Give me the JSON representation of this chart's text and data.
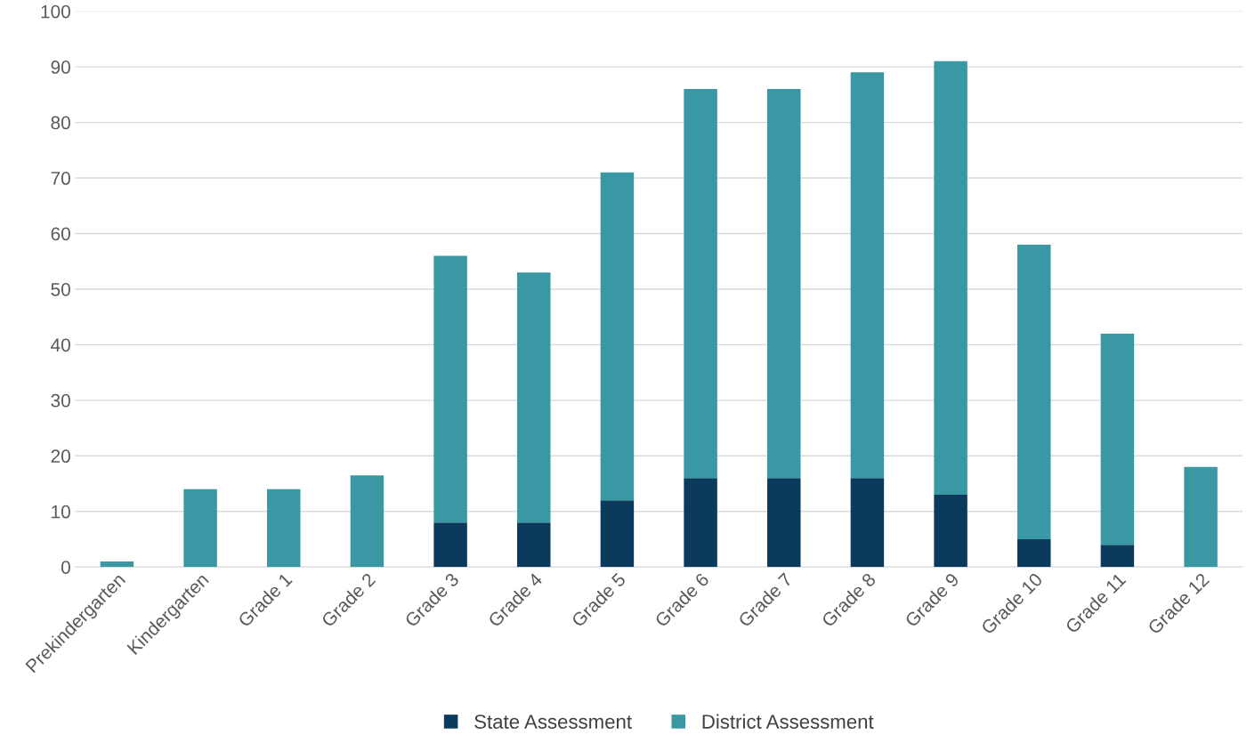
{
  "chart_data": {
    "type": "bar",
    "stacked": true,
    "categories": [
      "Prekindergarten",
      "Kindergarten",
      "Grade 1",
      "Grade 2",
      "Grade 3",
      "Grade 4",
      "Grade 5",
      "Grade 6",
      "Grade 7",
      "Grade 8",
      "Grade 9",
      "Grade 10",
      "Grade 11",
      "Grade 12"
    ],
    "series": [
      {
        "name": "State Assessment",
        "color": "#0b3a5c",
        "values": [
          0,
          0,
          0,
          0,
          8,
          8,
          12,
          16,
          16,
          16,
          13,
          5,
          4,
          0
        ]
      },
      {
        "name": "District Assessment",
        "color": "#3a98a5",
        "values": [
          1,
          14,
          14,
          16.5,
          48,
          45,
          59,
          70,
          70,
          73,
          78,
          53,
          38,
          18
        ]
      }
    ],
    "ylim": [
      0,
      100
    ],
    "yticks": [
      0,
      10,
      20,
      30,
      40,
      50,
      60,
      70,
      80,
      90,
      100
    ],
    "grid": "y",
    "legend": "bottom"
  }
}
